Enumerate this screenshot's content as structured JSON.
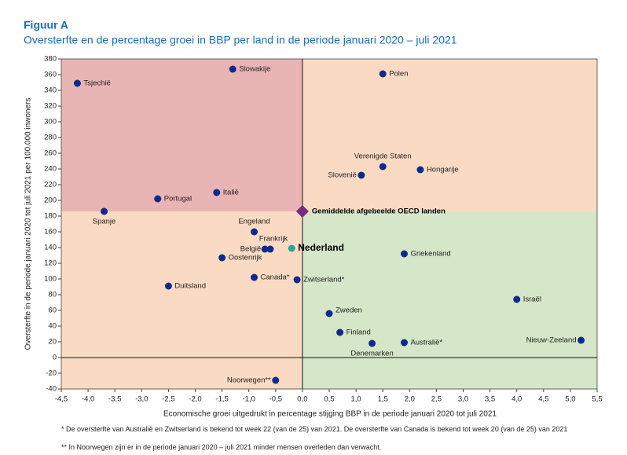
{
  "chart_data": {
    "type": "scatter",
    "title": "Figuur A",
    "subtitle": "Oversterfte en de percentage groei in BBP per land in de periode januari 2020 – juli 2021",
    "x_label": "Economische groei uitgedrukt in percentage stijging BBP in de periode januari 2020 tot juli 2021",
    "y_label": "Oversterfte in de periode januari 2020 tot juli 2021 per 100.000 inwoners",
    "xlim": [
      -4.5,
      5.5
    ],
    "ylim": [
      -40,
      380
    ],
    "xticks": [
      {
        "value": -4.5,
        "label": "-4,5"
      },
      {
        "value": -4,
        "label": "-4,0"
      },
      {
        "value": -3.5,
        "label": "-3,5"
      },
      {
        "value": -3,
        "label": "-3,0"
      },
      {
        "value": -2.5,
        "label": "-2,5"
      },
      {
        "value": -2,
        "label": "-2,0"
      },
      {
        "value": -1.5,
        "label": "-1,5"
      },
      {
        "value": -1,
        "label": "-1,0"
      },
      {
        "value": -0.5,
        "label": "-0,5"
      },
      {
        "value": 0,
        "label": "0,0"
      },
      {
        "value": 0.5,
        "label": "0,5"
      },
      {
        "value": 1,
        "label": "1,0"
      },
      {
        "value": 1.5,
        "label": "1,5"
      },
      {
        "value": 2,
        "label": "2,0"
      },
      {
        "value": 2.5,
        "label": "2,5"
      },
      {
        "value": 3,
        "label": "3,0"
      },
      {
        "value": 3.5,
        "label": "3,5"
      },
      {
        "value": 4,
        "label": "4,0"
      },
      {
        "value": 4.5,
        "label": "4,5"
      },
      {
        "value": 5,
        "label": "5,0"
      },
      {
        "value": 5.5,
        "label": "5,5"
      }
    ],
    "yticks": [
      -40,
      -20,
      0,
      20,
      40,
      60,
      80,
      100,
      120,
      140,
      160,
      180,
      200,
      220,
      240,
      260,
      280,
      300,
      320,
      340,
      360,
      380
    ],
    "labels": [
      "Tsjechië",
      "Slowakije",
      "Polen",
      "Verenigde Staten",
      "Slovenië",
      "Hongarije",
      "Italië",
      "Portugal",
      "Spanje",
      "Engeland",
      "België",
      "Frankrijk",
      "Nederland",
      "Oostenrijk",
      "Canada*",
      "Zwitserland*",
      "Griekenland",
      "Duitsland",
      "Israël",
      "Zweden",
      "Finland",
      "Denemarken",
      "Australië*",
      "Nieuw-Zeeland",
      "Noorwegen**"
    ],
    "x": [
      -4.2,
      -1.3,
      1.5,
      1.5,
      1.1,
      2.2,
      -1.6,
      -2.7,
      -3.7,
      -0.9,
      -0.7,
      -0.6,
      -0.2,
      -1.5,
      -0.9,
      -0.1,
      1.9,
      -2.5,
      4.0,
      0.5,
      0.7,
      1.3,
      1.9,
      5.2,
      -0.5
    ],
    "y": [
      349,
      367,
      361,
      243,
      232,
      239,
      210,
      202,
      186,
      160,
      138,
      138,
      139,
      127,
      102,
      99,
      132,
      91,
      74,
      56,
      32,
      18,
      19,
      22,
      -29
    ],
    "colors": [
      "#0d2b8c",
      "#0d2b8c",
      "#0d2b8c",
      "#0d2b8c",
      "#0d2b8c",
      "#0d2b8c",
      "#0d2b8c",
      "#0d2b8c",
      "#0d2b8c",
      "#0d2b8c",
      "#0d2b8c",
      "#0d2b8c",
      "#27a99a",
      "#0d2b8c",
      "#0d2b8c",
      "#0d2b8c",
      "#0d2b8c",
      "#0d2b8c",
      "#0d2b8c",
      "#0d2b8c",
      "#0d2b8c",
      "#0d2b8c",
      "#0d2b8c",
      "#0d2b8c",
      "#0d2b8c"
    ],
    "average": {
      "label": "Gemiddelde afgebeelde OECD landen",
      "x": 0.0,
      "y": 186,
      "color": "#7b2a80"
    },
    "quadrant_colors": {
      "top_left": "#e9b4b4",
      "top_right": "#fadac2",
      "bottom_left": "#fadac2",
      "bottom_right": "#d6e6c8"
    },
    "notes": [
      "* De oversterfte van Australië en Zwitserland is bekend tot week 22 (van de 25) van 2021. De oversterfte van Canada is bekend tot week 20 (van de 25) van 2021",
      "** In Noorwegen zijn er in de periode januari 2020 – juli 2021 minder mensen overleden dan verwacht."
    ]
  }
}
